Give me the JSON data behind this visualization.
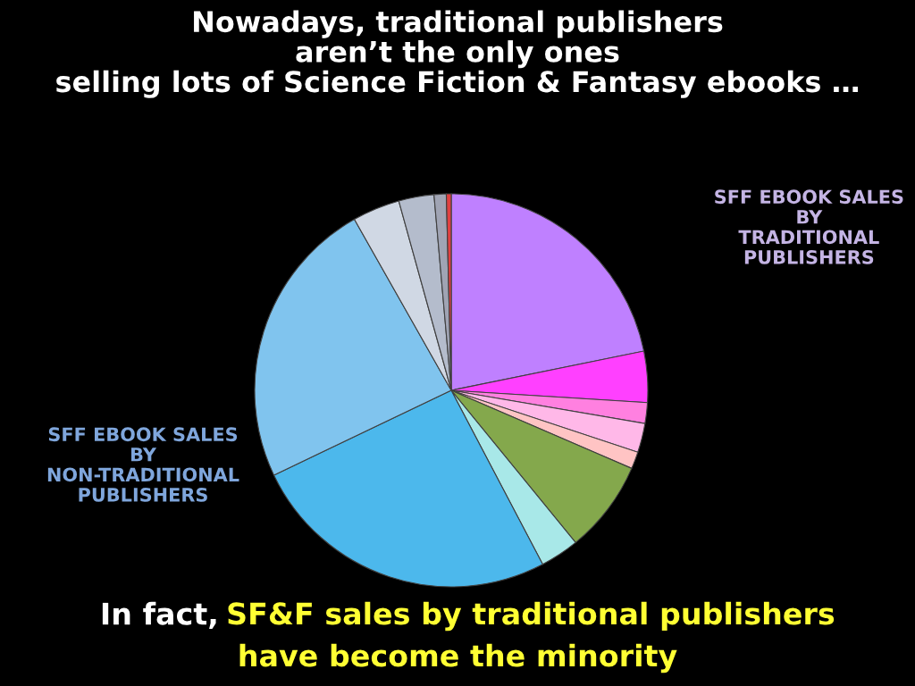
{
  "chart_data": {
    "type": "pie",
    "title": "Nowadays, traditional publishers\naren’t the only ones\nselling lots of Science Fiction & Fantasy ebooks …",
    "categories": [
      null,
      null,
      null,
      null,
      null,
      null,
      null,
      null,
      null,
      null,
      null,
      null,
      null
    ],
    "values": [
      21.8,
      4.2,
      1.7,
      2.4,
      1.4,
      7.6,
      3.2,
      25.6,
      23.9,
      3.9,
      2.9,
      1.0,
      0.4
    ],
    "colors": [
      "#bf80ff",
      "#ff40ff",
      "#ff80e0",
      "#ffb8e8",
      "#ffc4c4",
      "#84a84c",
      "#a8e8e8",
      "#4cb8ec",
      "#80c4ee",
      "#d0d8e4",
      "#b4bccc",
      "#a0a4b4",
      "#e04040"
    ],
    "annotations": [
      "SFF EBOOK SALES\nBY\nTRADITIONAL\nPUBLISHERS",
      "SFF EBOOK SALES\nBY\nNON-TRADITIONAL\nPUBLISHERS",
      "In fact,",
      "SF&F sales by traditional publishers",
      "have become the minority"
    ],
    "legend": false
  }
}
